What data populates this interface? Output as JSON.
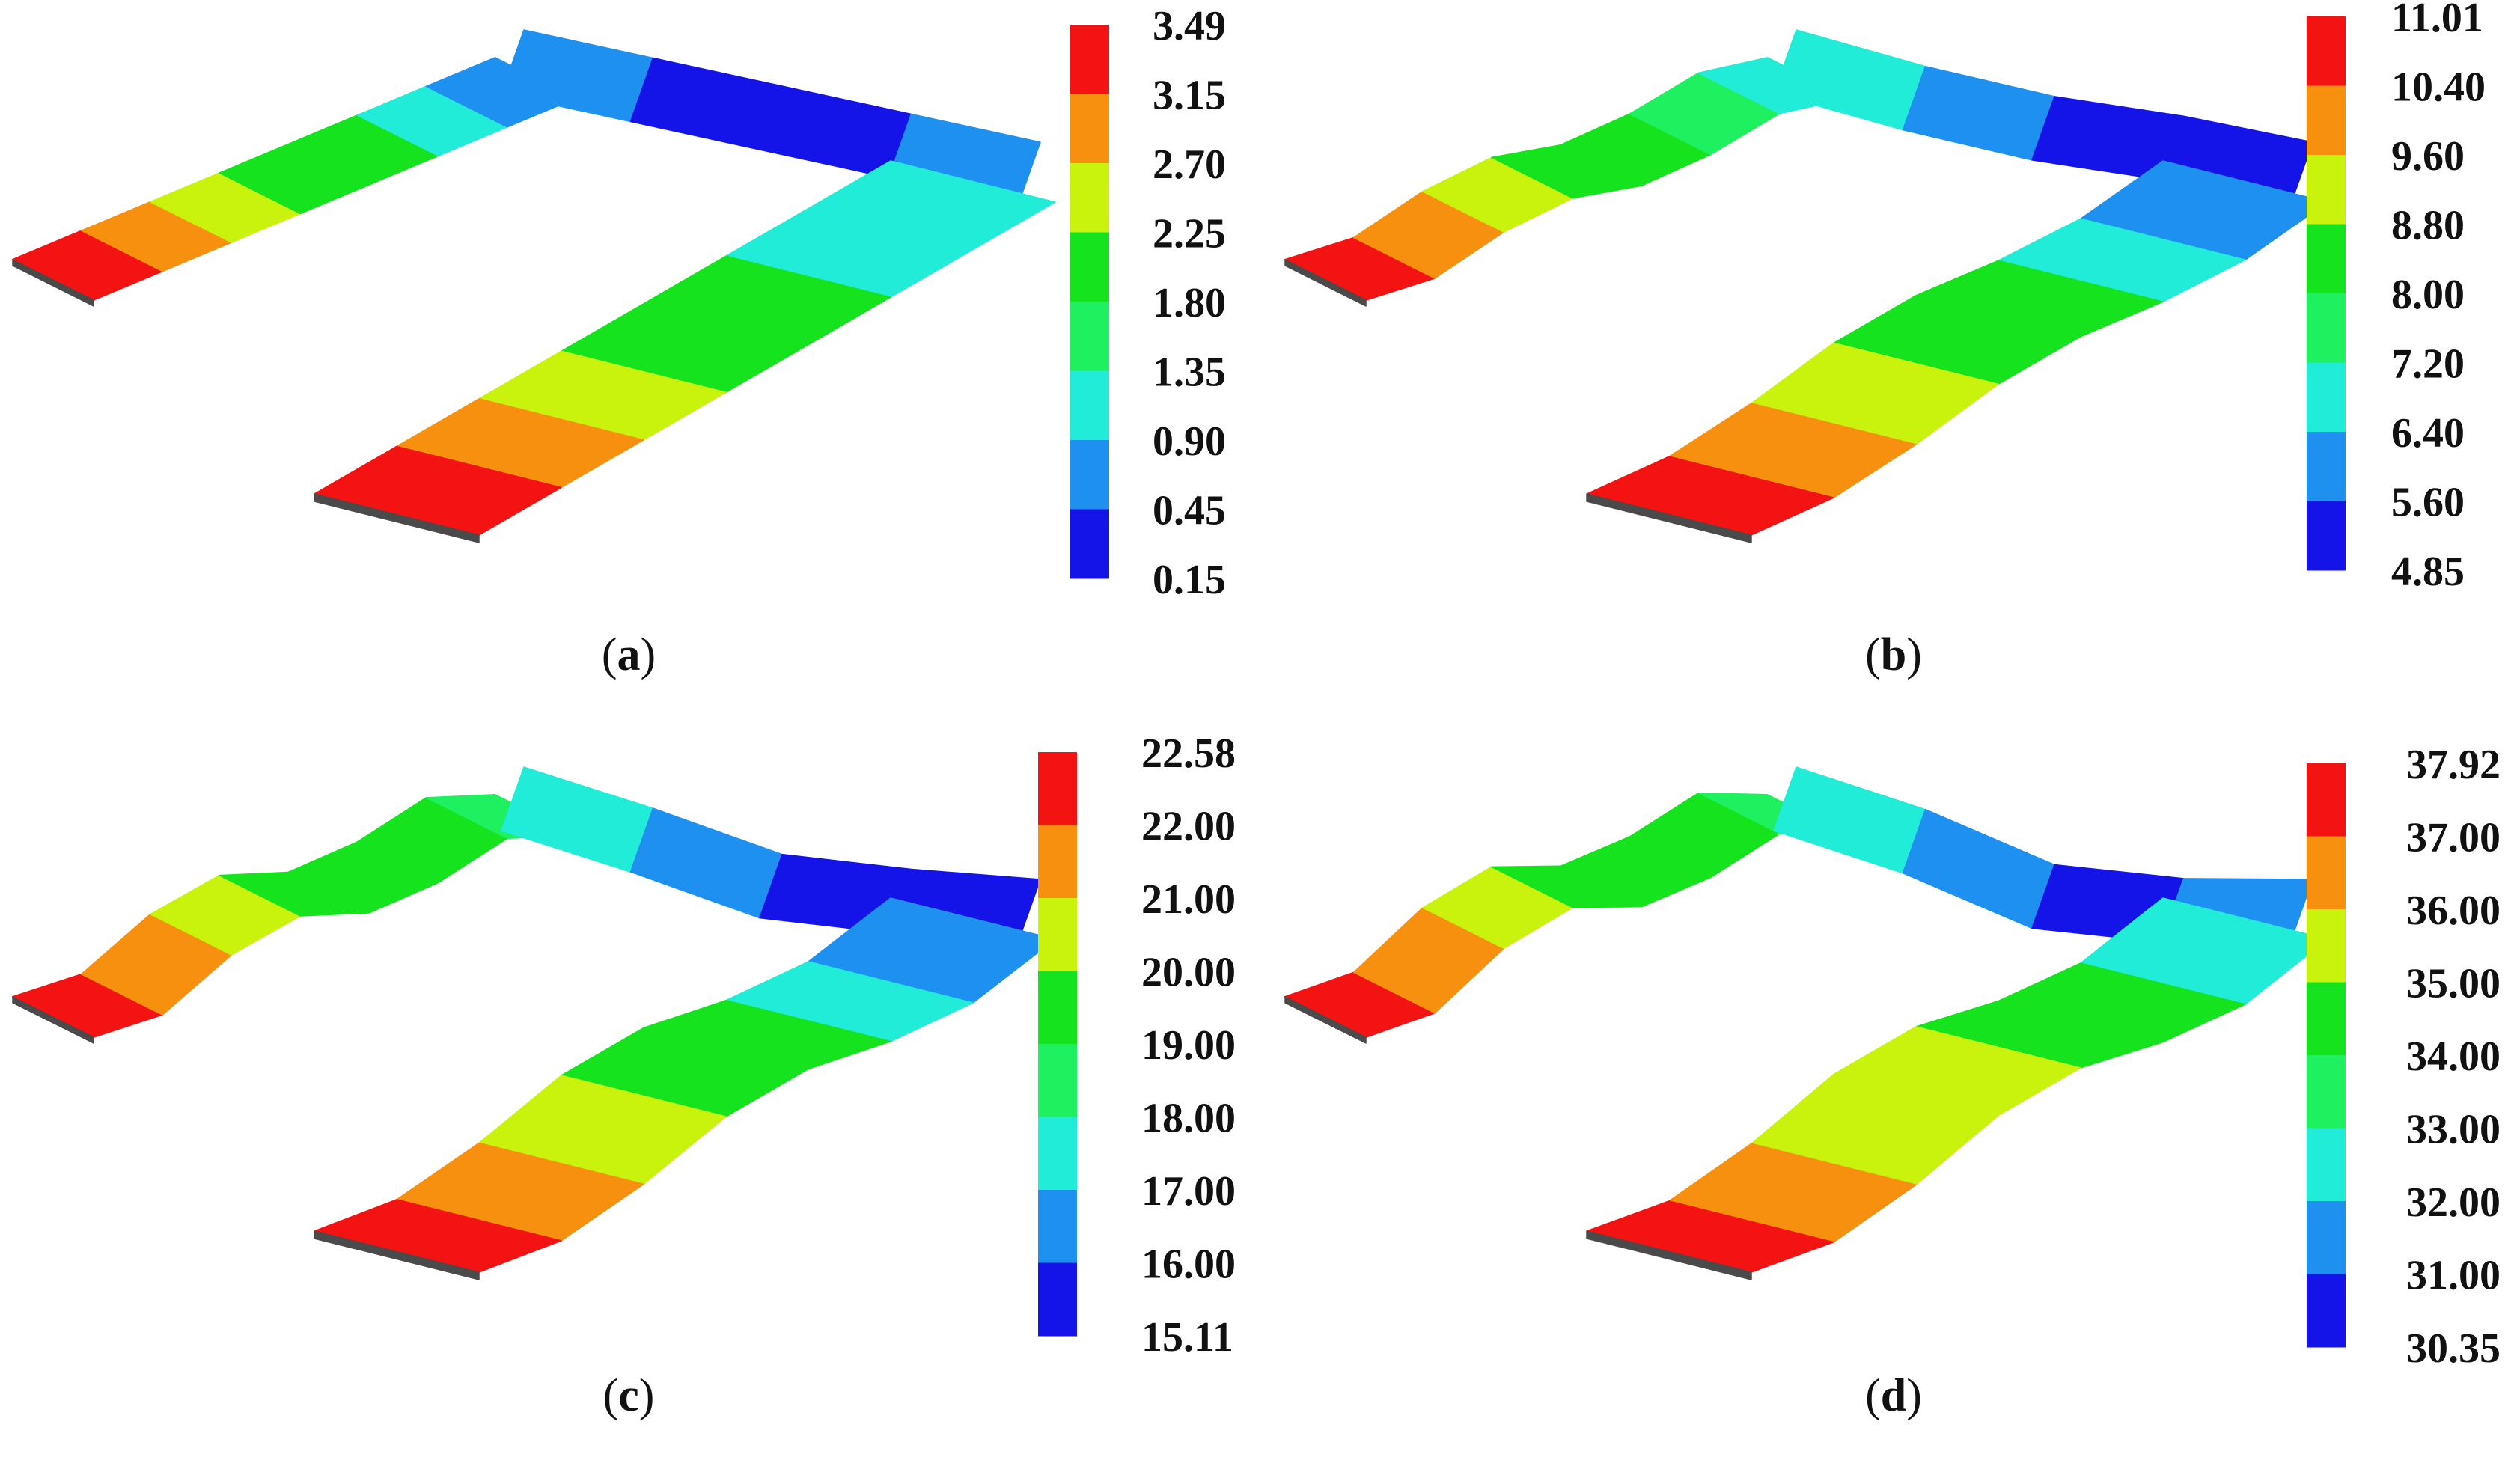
{
  "colors": {
    "red": "#f41313",
    "orange": "#f6900e",
    "yellow": "#c9f20c",
    "green": "#14e31e",
    "lightgreen": "#1ff05f",
    "cyan": "#20ecd8",
    "blue": "#1e90f0",
    "darkblue": "#1414e8",
    "edge": "#4a4a4a"
  },
  "panels": [
    {
      "id": "a",
      "caption_letter": "a",
      "legend_colors": [
        "red",
        "orange",
        "yellow",
        "green",
        "lightgreen",
        "cyan",
        "blue",
        "darkblue"
      ],
      "legend_labels": [
        "3.49",
        "3.15",
        "2.70",
        "2.25",
        "1.80",
        "1.35",
        "0.90",
        "0.45",
        "0.15"
      ]
    },
    {
      "id": "b",
      "caption_letter": "b",
      "legend_colors": [
        "red",
        "orange",
        "yellow",
        "green",
        "lightgreen",
        "cyan",
        "blue",
        "darkblue"
      ],
      "legend_labels": [
        "11.01",
        "10.40",
        "9.60",
        "8.80",
        "8.00",
        "7.20",
        "6.40",
        "5.60",
        "4.85"
      ]
    },
    {
      "id": "c",
      "caption_letter": "c",
      "legend_colors": [
        "red",
        "orange",
        "yellow",
        "green",
        "lightgreen",
        "cyan",
        "blue",
        "darkblue"
      ],
      "legend_labels": [
        "22.58",
        "22.00",
        "21.00",
        "20.00",
        "19.00",
        "18.00",
        "17.00",
        "16.00",
        "15.11"
      ]
    },
    {
      "id": "d",
      "caption_letter": "d",
      "legend_colors": [
        "red",
        "orange",
        "yellow",
        "green",
        "lightgreen",
        "cyan",
        "blue",
        "darkblue"
      ],
      "legend_labels": [
        "37.92",
        "37.00",
        "36.00",
        "35.00",
        "34.00",
        "33.00",
        "32.00",
        "31.00",
        "30.35"
      ]
    }
  ]
}
